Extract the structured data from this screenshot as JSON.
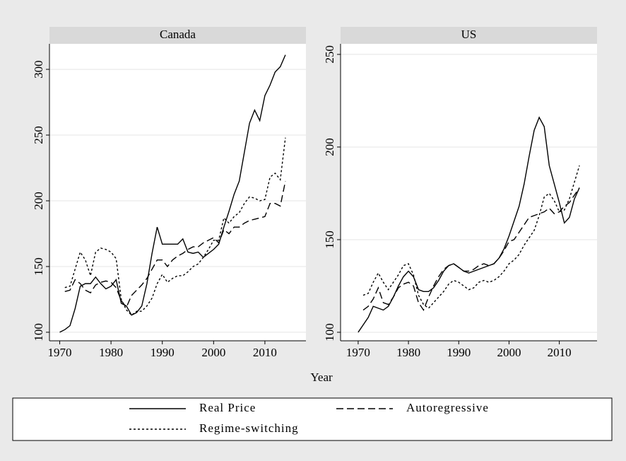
{
  "chart_data": [
    {
      "type": "line",
      "title": "Canada",
      "x": [
        1970,
        1971,
        1972,
        1973,
        1974,
        1975,
        1976,
        1977,
        1978,
        1979,
        1980,
        1981,
        1982,
        1983,
        1984,
        1985,
        1986,
        1987,
        1988,
        1989,
        1990,
        1991,
        1992,
        1993,
        1994,
        1995,
        1996,
        1997,
        1998,
        1999,
        2000,
        2001,
        2002,
        2003,
        2004,
        2005,
        2006,
        2007,
        2008,
        2009,
        2010,
        2011,
        2012,
        2013,
        2014
      ],
      "xlim": [
        1968,
        2018
      ],
      "xticks": [
        1970,
        1980,
        1990,
        2000,
        2010
      ],
      "ylim": [
        93.5,
        319.4
      ],
      "yticks": [
        100,
        150,
        200,
        250,
        300
      ],
      "grid": true,
      "series": [
        {
          "name": "Real Price",
          "color": "#000000",
          "dash": "solid",
          "values": [
            100,
            102,
            105,
            118,
            135,
            137,
            137,
            142,
            137,
            133,
            135,
            140,
            122,
            120,
            113,
            115,
            120,
            137,
            160,
            180,
            167,
            167,
            167,
            167,
            171,
            161,
            160,
            161,
            157,
            160,
            163,
            167,
            180,
            192,
            205,
            215,
            237,
            259,
            269,
            261,
            280,
            288,
            298,
            302,
            311
          ]
        },
        {
          "name": "Autoregressive",
          "color": "#000000",
          "dash": "dashed",
          "values": [
            null,
            131,
            132,
            140,
            137,
            132,
            130,
            136,
            138,
            139,
            138,
            134,
            124,
            119,
            128,
            132,
            136,
            141,
            148,
            155,
            155,
            150,
            155,
            158,
            160,
            163,
            165,
            165,
            168,
            170,
            172,
            168,
            178,
            175,
            180,
            180,
            183,
            185,
            186,
            187,
            188,
            198,
            198,
            196,
            215
          ]
        },
        {
          "name": "Regime-switching",
          "color": "#000000",
          "dash": "dotted",
          "values": [
            null,
            134,
            135,
            148,
            161,
            155,
            143,
            161,
            164,
            163,
            161,
            156,
            125,
            117,
            113,
            116,
            116,
            120,
            126,
            137,
            144,
            138,
            141,
            143,
            143,
            146,
            150,
            152,
            157,
            163,
            170,
            170,
            187,
            183,
            188,
            191,
            198,
            203,
            202,
            200,
            201,
            218,
            221,
            216,
            248
          ]
        }
      ]
    },
    {
      "type": "line",
      "title": "US",
      "x": [
        1970,
        1971,
        1972,
        1973,
        1974,
        1975,
        1976,
        1977,
        1978,
        1979,
        1980,
        1981,
        1982,
        1983,
        1984,
        1985,
        1986,
        1987,
        1988,
        1989,
        1990,
        1991,
        1992,
        1993,
        1994,
        1995,
        1996,
        1997,
        1998,
        1999,
        2000,
        2001,
        2002,
        2003,
        2004,
        2005,
        2006,
        2007,
        2008,
        2009,
        2010,
        2011,
        2012,
        2013,
        2014
      ],
      "xlim": [
        1966.5,
        2017.5
      ],
      "xticks": [
        1970,
        1980,
        1990,
        2000,
        2010
      ],
      "ylim": [
        95.4,
        255.7
      ],
      "yticks": [
        100,
        150,
        200,
        250
      ],
      "grid": true,
      "series": [
        {
          "color": "#000000",
          "dash": "solid",
          "values": [
            100,
            104,
            108,
            114,
            113,
            112,
            114,
            119,
            125,
            130,
            133,
            130,
            123,
            122,
            122,
            124,
            128,
            133,
            136,
            137,
            135,
            133,
            132,
            133,
            134,
            135,
            136,
            137,
            140,
            145,
            152,
            160,
            168,
            180,
            195,
            209,
            216,
            211,
            190,
            180,
            170,
            159,
            162,
            172,
            178
          ]
        },
        {
          "color": "#000000",
          "dash": "dashed",
          "values": [
            null,
            112,
            114,
            118,
            124,
            116,
            115,
            119,
            124,
            126,
            127,
            125,
            116,
            112,
            119,
            125,
            130,
            134,
            136,
            137,
            135,
            133,
            133,
            134,
            136,
            137,
            136,
            137,
            140,
            144,
            149,
            150,
            154,
            158,
            162,
            163,
            164,
            165,
            167,
            164,
            165,
            168,
            170,
            174,
            178
          ]
        },
        {
          "color": "#000000",
          "dash": "dotted",
          "values": [
            null,
            120,
            121,
            127,
            132,
            127,
            123,
            127,
            131,
            136,
            137,
            131,
            120,
            115,
            113,
            116,
            119,
            122,
            126,
            128,
            127,
            125,
            123,
            124,
            127,
            128,
            127,
            128,
            130,
            133,
            137,
            139,
            142,
            147,
            151,
            155,
            163,
            173,
            175,
            171,
            165,
            166,
            172,
            181,
            190
          ]
        }
      ]
    }
  ],
  "xlabel": "Year"
}
